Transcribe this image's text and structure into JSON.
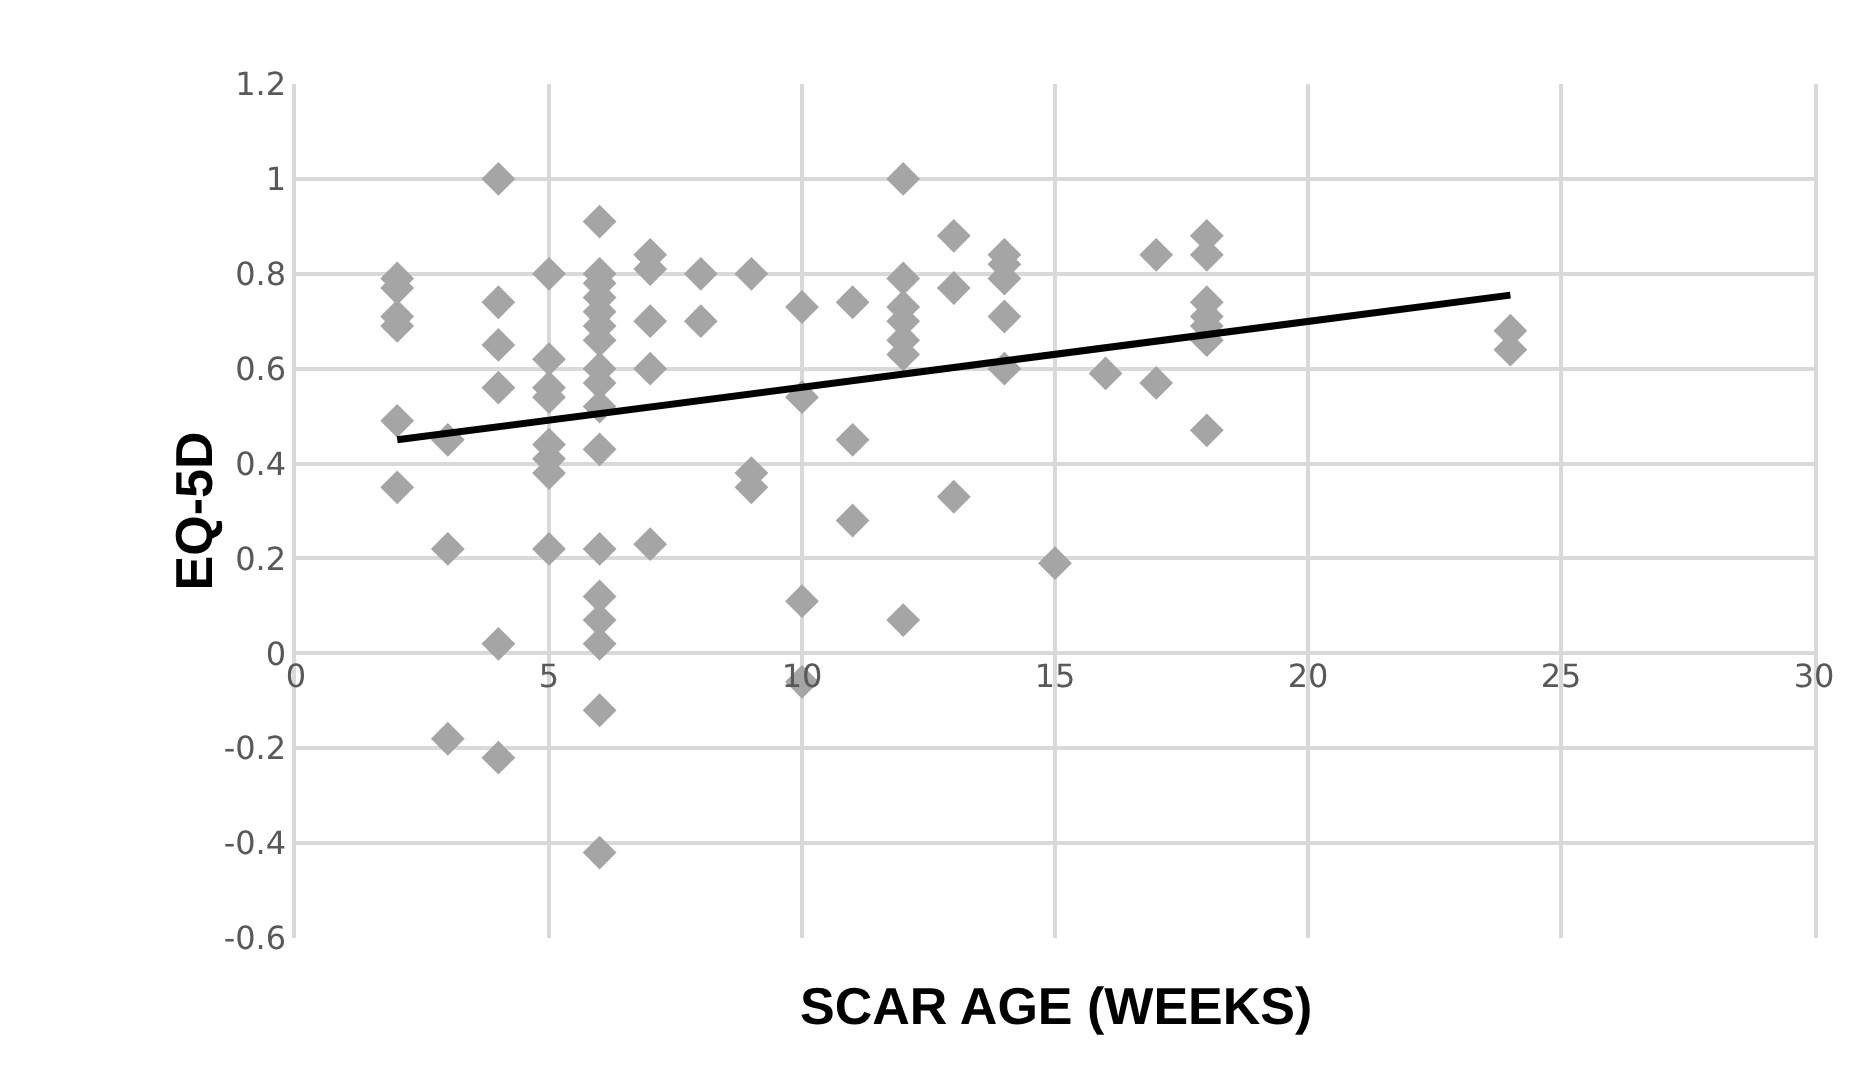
{
  "chart_data": {
    "type": "scatter",
    "xlabel": "SCAR AGE (WEEKS)",
    "ylabel": "EQ-5D",
    "xlim": [
      0,
      30
    ],
    "xticks": [
      0,
      5,
      10,
      15,
      20,
      25,
      30
    ],
    "ylim": [
      -0.6,
      1.2
    ],
    "yticks": [
      -0.6,
      -0.4,
      -0.2,
      0,
      0.2,
      0.4,
      0.6,
      0.8,
      1,
      1.2
    ],
    "grid": true,
    "series": [
      {
        "marker": "diamond",
        "color": "#a5a5a5",
        "x": [
          2,
          2,
          2,
          2,
          2,
          2,
          3,
          3,
          3,
          4,
          4,
          4,
          4,
          4,
          4,
          5,
          5,
          5,
          5,
          5,
          5,
          5,
          5,
          6,
          6,
          6,
          6,
          6,
          6,
          6,
          6,
          6,
          6,
          6,
          6,
          6,
          6,
          6,
          6,
          6,
          7,
          7,
          7,
          7,
          7,
          8,
          8,
          9,
          9,
          9,
          10,
          10,
          10,
          10,
          11,
          11,
          11,
          12,
          12,
          12,
          12,
          12,
          12,
          12,
          13,
          13,
          13,
          14,
          14,
          14,
          14,
          14,
          15,
          16,
          17,
          17,
          18,
          18,
          18,
          18,
          18,
          18,
          18,
          24,
          24
        ],
        "values": [
          0.79,
          0.77,
          0.71,
          0.69,
          0.49,
          0.35,
          0.45,
          0.22,
          -0.18,
          1.0,
          0.74,
          0.65,
          0.56,
          0.02,
          -0.22,
          0.8,
          0.62,
          0.56,
          0.54,
          0.44,
          0.41,
          0.38,
          0.22,
          0.91,
          0.8,
          0.78,
          0.75,
          0.72,
          0.69,
          0.66,
          0.6,
          0.57,
          0.52,
          0.43,
          0.22,
          0.12,
          0.07,
          0.02,
          -0.12,
          -0.42,
          0.84,
          0.81,
          0.7,
          0.6,
          0.23,
          0.8,
          0.7,
          0.8,
          0.38,
          0.35,
          0.73,
          0.54,
          0.11,
          -0.06,
          0.74,
          0.45,
          0.28,
          1.0,
          0.79,
          0.73,
          0.7,
          0.66,
          0.63,
          0.07,
          0.88,
          0.77,
          0.33,
          0.84,
          0.82,
          0.79,
          0.71,
          0.6,
          0.19,
          0.59,
          0.84,
          0.57,
          0.88,
          0.84,
          0.74,
          0.71,
          0.69,
          0.66,
          0.47,
          0.68,
          0.64
        ]
      },
      {
        "type": "line",
        "color": "#000000",
        "x": [
          2,
          24
        ],
        "values": [
          0.45,
          0.755
        ],
        "line_style": "solid"
      }
    ]
  }
}
